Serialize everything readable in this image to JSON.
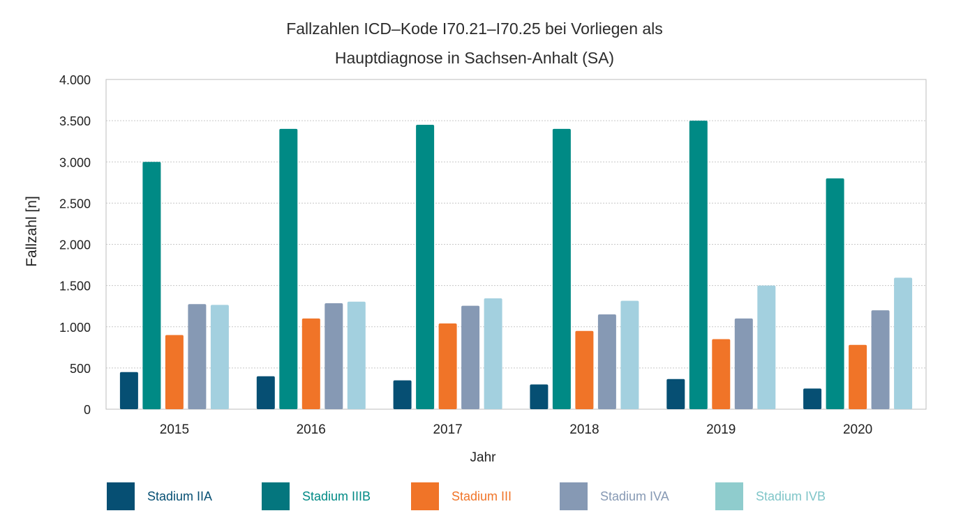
{
  "chart_data": {
    "type": "bar",
    "title_lines": [
      "Fallzahlen ICD–Kode I70.21–I70.25 bei Vorliegen als",
      "Hauptdiagnose in Sachsen-Anhalt (SA)"
    ],
    "xlabel": "Jahr",
    "ylabel": "Fallzahl [n]",
    "ylim": [
      0,
      4000
    ],
    "yticks": [
      0,
      500,
      1000,
      1500,
      2000,
      2500,
      3000,
      3500,
      4000
    ],
    "ytick_labels": [
      "0",
      "500",
      "1.000",
      "1.500",
      "2.000",
      "2.500",
      "3.000",
      "3.500",
      "4.000"
    ],
    "grid": true,
    "legend_position": "bottom",
    "categories": [
      "2015",
      "2016",
      "2017",
      "2018",
      "2019",
      "2020"
    ],
    "series": [
      {
        "name": "Stadium IIA",
        "color": "#064f73",
        "values": [
          450,
          400,
          350,
          300,
          365,
          250
        ]
      },
      {
        "name": "Stadium IIIB",
        "color": "#008a85",
        "values": [
          3000,
          3400,
          3450,
          3400,
          3500,
          2800
        ]
      },
      {
        "name": "Stadium III",
        "color": "#f07428",
        "values": [
          900,
          1100,
          1040,
          950,
          850,
          780
        ]
      },
      {
        "name": "Stadium IVA",
        "color": "#8699b4",
        "values": [
          1275,
          1285,
          1255,
          1150,
          1100,
          1200
        ]
      },
      {
        "name": "Stadium IVB",
        "color": "#a3d0df",
        "values": [
          1265,
          1305,
          1345,
          1315,
          1500,
          1595
        ]
      }
    ],
    "legend_label_colors": [
      "#064f73",
      "#008a85",
      "#f07428",
      "#8699b4",
      "#7fc5c8"
    ],
    "legend_swatch_colors": [
      "#064f73",
      "#04767e",
      "#f07428",
      "#8699b4",
      "#8fcccd"
    ]
  }
}
